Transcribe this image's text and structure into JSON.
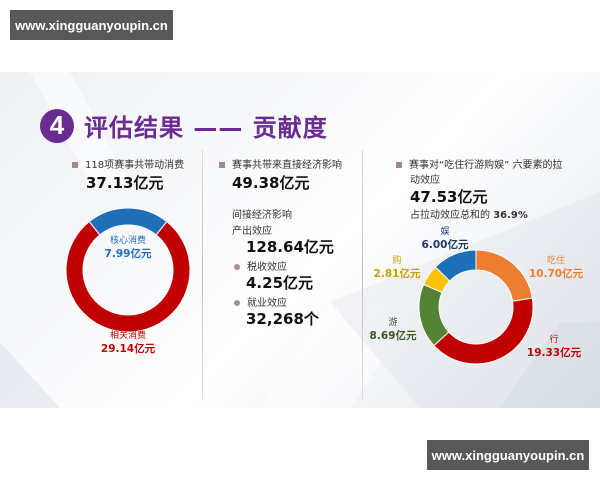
{
  "watermarks": {
    "top": "www.xingguanyoupin.cn",
    "bottom": "www.xingguanyoupin.cn"
  },
  "slide": {
    "section_number": "4",
    "title": "评估结果 —— 贡献度",
    "accent_color": "#6a2c91"
  },
  "panel_left": {
    "label": "118项赛事共带动消费",
    "total": "37.13亿元",
    "core": {
      "name": "核心消费",
      "value": "7.99亿元",
      "color": "#1f6fb8"
    },
    "related": {
      "name": "相关消费",
      "value": "29.14亿元",
      "color": "#c00000"
    }
  },
  "panel_middle": {
    "direct_label": "赛事共带来直接经济影响",
    "direct_value": "49.38亿元",
    "indirect_heading": "间接经济影响",
    "output_label": "产出效应",
    "output_value": "128.64亿元",
    "tax_label": "税收效应",
    "tax_value": "4.25亿元",
    "jobs_label": "就业效应",
    "jobs_value": "32,268个"
  },
  "panel_right": {
    "label_line1": "赛事对“吃住行游购娱” 六要素的拉",
    "label_line2": "动效应",
    "total": "47.53亿元",
    "share_prefix": "占拉动效应总和的",
    "share_value": "36.9%"
  },
  "chart_data": [
    {
      "type": "pie",
      "title": "118项赛事共带动消费 37.13亿元",
      "donut": true,
      "categories": [
        "核心消费",
        "相关消费"
      ],
      "values": [
        7.99,
        29.14
      ],
      "unit": "亿元",
      "colors": [
        "#1f6fb8",
        "#c00000"
      ]
    },
    {
      "type": "pie",
      "title": "赛事对“吃住行游购娱”六要素的拉动效应 47.53亿元",
      "donut": true,
      "categories": [
        "吃住",
        "行",
        "游",
        "购",
        "娱"
      ],
      "values": [
        10.7,
        19.33,
        8.69,
        2.81,
        6.0
      ],
      "unit": "亿元",
      "colors": [
        "#ed7d31",
        "#c00000",
        "#548235",
        "#ffc000",
        "#1f6fb8"
      ]
    }
  ]
}
